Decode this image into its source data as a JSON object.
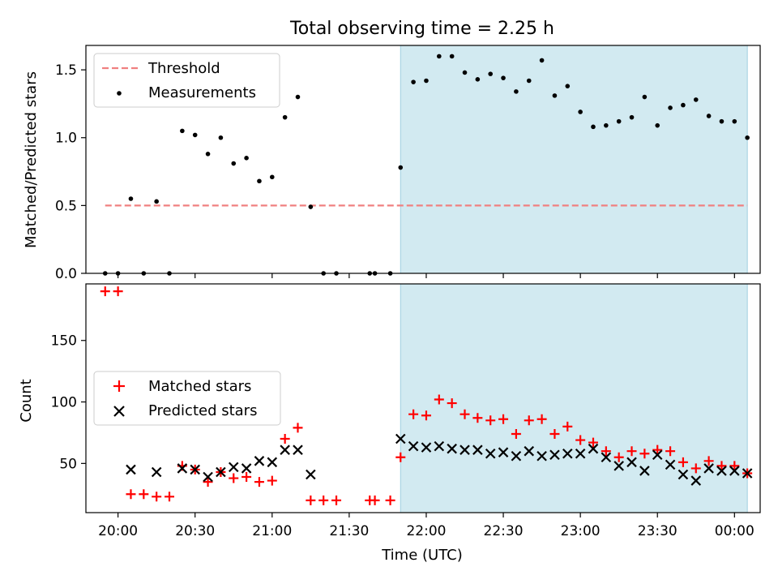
{
  "chart_data": [
    {
      "type": "scatter",
      "title": "Total observing time = 2.25 h",
      "ylabel": "Matched/Predicted stars",
      "ylim": [
        0,
        1.68
      ],
      "yticks": [
        0.0,
        0.5,
        1.0,
        1.5
      ],
      "ytick_labels": [
        "0.0",
        "0.5",
        "1.0",
        "1.5"
      ],
      "legend": {
        "placement": "upper-left"
      },
      "series": [
        {
          "name": "Threshold",
          "style": "dashed-line",
          "color": "#f08080",
          "x": [
            "19:55",
            "00:05"
          ],
          "values": [
            0.5,
            0.5
          ]
        },
        {
          "name": "Measurements",
          "style": "dots",
          "color": "#000000",
          "x": [
            "19:55",
            "20:00",
            "20:05",
            "20:10",
            "20:15",
            "20:20",
            "20:25",
            "20:30",
            "20:35",
            "20:40",
            "20:45",
            "20:50",
            "20:55",
            "21:00",
            "21:05",
            "21:10",
            "21:15",
            "21:20",
            "21:25",
            "21:38",
            "21:40",
            "21:46",
            "21:50",
            "21:55",
            "22:00",
            "22:05",
            "22:10",
            "22:15",
            "22:20",
            "22:25",
            "22:30",
            "22:35",
            "22:40",
            "22:45",
            "22:50",
            "22:55",
            "23:00",
            "23:05",
            "23:10",
            "23:15",
            "23:20",
            "23:25",
            "23:30",
            "23:35",
            "23:40",
            "23:45",
            "23:50",
            "23:55",
            "00:00",
            "00:05"
          ],
          "values": [
            0.0,
            0.0,
            0.55,
            0.0,
            0.53,
            0.0,
            1.05,
            1.02,
            0.88,
            1.0,
            0.81,
            0.85,
            0.68,
            0.71,
            1.15,
            1.3,
            0.49,
            0.0,
            0.0,
            0.0,
            0.0,
            0.0,
            0.78,
            1.41,
            1.42,
            1.6,
            1.6,
            1.48,
            1.43,
            1.47,
            1.44,
            1.34,
            1.42,
            1.57,
            1.31,
            1.38,
            1.19,
            1.08,
            1.09,
            1.12,
            1.15,
            1.3,
            1.09,
            1.22,
            1.24,
            1.28,
            1.16,
            1.12,
            1.12,
            1.0
          ]
        }
      ],
      "shaded_span": {
        "from": "21:50",
        "to": "00:05",
        "color": "#add8e6"
      }
    },
    {
      "type": "scatter",
      "xlabel": "Time (UTC)",
      "ylabel": "Count",
      "ylim": [
        10,
        196
      ],
      "yticks": [
        50,
        100,
        150
      ],
      "ytick_labels": [
        "50",
        "100",
        "150"
      ],
      "xticks": [
        "20:00",
        "20:30",
        "21:00",
        "21:30",
        "22:00",
        "22:30",
        "23:00",
        "23:30",
        "00:00"
      ],
      "legend": {
        "placement": "center-left"
      },
      "series": [
        {
          "name": "Matched stars",
          "marker": "plus",
          "color": "#ff0000",
          "x": [
            "19:55",
            "20:00",
            "20:05",
            "20:10",
            "20:15",
            "20:20",
            "20:25",
            "20:30",
            "20:35",
            "20:40",
            "20:45",
            "20:50",
            "20:55",
            "21:00",
            "21:05",
            "21:10",
            "21:15",
            "21:20",
            "21:25",
            "21:38",
            "21:40",
            "21:46",
            "21:50",
            "21:55",
            "22:00",
            "22:05",
            "22:10",
            "22:15",
            "22:20",
            "22:25",
            "22:30",
            "22:35",
            "22:40",
            "22:45",
            "22:50",
            "22:55",
            "23:00",
            "23:05",
            "23:10",
            "23:15",
            "23:20",
            "23:25",
            "23:30",
            "23:35",
            "23:40",
            "23:45",
            "23:50",
            "23:55",
            "00:00",
            "00:05"
          ],
          "values": [
            190,
            190,
            25,
            25,
            23,
            23,
            48,
            45,
            35,
            43,
            38,
            39,
            35,
            36,
            70,
            79,
            20,
            20,
            20,
            20,
            20,
            20,
            55,
            90,
            89,
            102,
            99,
            90,
            87,
            85,
            86,
            74,
            85,
            86,
            74,
            80,
            69,
            67,
            60,
            55,
            60,
            58,
            61,
            60,
            51,
            46,
            52,
            48,
            48,
            42
          ]
        },
        {
          "name": "Predicted stars",
          "marker": "x",
          "color": "#000000",
          "x": [
            "20:05",
            "20:15",
            "20:25",
            "20:30",
            "20:35",
            "20:40",
            "20:45",
            "20:50",
            "20:55",
            "21:00",
            "21:05",
            "21:10",
            "21:15",
            "21:50",
            "21:55",
            "22:00",
            "22:05",
            "22:10",
            "22:15",
            "22:20",
            "22:25",
            "22:30",
            "22:35",
            "22:40",
            "22:45",
            "22:50",
            "22:55",
            "23:00",
            "23:05",
            "23:10",
            "23:15",
            "23:20",
            "23:25",
            "23:30",
            "23:35",
            "23:40",
            "23:45",
            "23:50",
            "23:55",
            "00:00",
            "00:05"
          ],
          "values": [
            45,
            43,
            46,
            45,
            39,
            43,
            47,
            46,
            52,
            51,
            61,
            61,
            41,
            70,
            64,
            63,
            64,
            62,
            61,
            61,
            58,
            59,
            56,
            60,
            56,
            57,
            58,
            58,
            62,
            55,
            48,
            51,
            44,
            57,
            49,
            41,
            36,
            46,
            44,
            44,
            42
          ]
        }
      ],
      "shaded_span": {
        "from": "21:50",
        "to": "00:05",
        "color": "#add8e6"
      }
    }
  ]
}
